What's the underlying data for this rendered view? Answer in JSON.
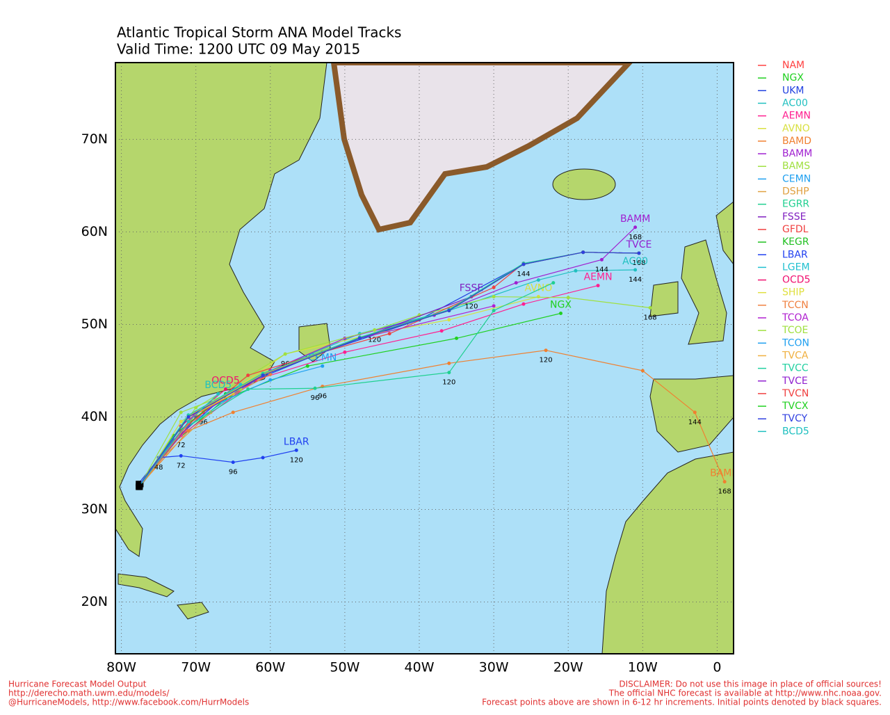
{
  "chart_data": {
    "type": "track-map",
    "title": "Atlantic Tropical Storm ANA Model Tracks",
    "subtitle": "Valid Time: 1200 UTC 09 May 2015",
    "xlim": [
      -80.8,
      2.2
    ],
    "ylim": [
      14.4,
      78.3
    ],
    "xticks": [
      {
        "value": -80,
        "label": "80W"
      },
      {
        "value": -70,
        "label": "70W"
      },
      {
        "value": -60,
        "label": "60W"
      },
      {
        "value": -50,
        "label": "50W"
      },
      {
        "value": -40,
        "label": "40W"
      },
      {
        "value": -30,
        "label": "30W"
      },
      {
        "value": -20,
        "label": "20W"
      },
      {
        "value": -10,
        "label": "10W"
      },
      0
    ],
    "yticks": [
      {
        "value": 20,
        "label": "20N"
      },
      {
        "value": 30,
        "label": "30N"
      },
      {
        "value": 40,
        "label": "40N"
      },
      {
        "value": 50,
        "label": "50N"
      },
      {
        "value": 60,
        "label": "60N"
      },
      {
        "value": 70,
        "label": "70N"
      }
    ],
    "grid": true,
    "series": [
      {
        "name": "NAM",
        "color": "#ff4040",
        "x": [
          -77.5,
          -75,
          -72,
          -69
        ],
        "values": [
          32.6,
          35.5,
          38,
          40.5
        ],
        "hours": [
          null,
          null,
          72,
          96
        ]
      },
      {
        "name": "NGX",
        "color": "#20d020",
        "x": [
          -77.6,
          -74,
          -66,
          -55,
          -35,
          -21
        ],
        "values": [
          32.5,
          36.5,
          42,
          45.5,
          48.5,
          51.2
        ],
        "labeled": true
      },
      {
        "name": "UKM",
        "color": "#2040e0",
        "x": [
          -77.7,
          -73,
          -65,
          -53,
          -40,
          -26,
          -18,
          -10.5
        ],
        "values": [
          32.8,
          37.5,
          43,
          47,
          50.5,
          56.5,
          57.8,
          57.7
        ],
        "hours": [
          null,
          null,
          null,
          null,
          null,
          144,
          null,
          168
        ]
      },
      {
        "name": "AC00",
        "color": "#20c0c0",
        "x": [
          -77.5,
          -72,
          -60,
          -48,
          -36,
          -24,
          -19,
          -11
        ],
        "values": [
          32.4,
          38.5,
          45,
          49,
          51.5,
          54.8,
          55.8,
          55.9
        ],
        "hours": [
          null,
          null,
          null,
          null,
          null,
          null,
          null,
          144
        ],
        "labeled": true
      },
      {
        "name": "AEMN",
        "color": "#ff2090",
        "x": [
          -77.6,
          -72,
          -62,
          -50,
          -37,
          -26,
          -16
        ],
        "values": [
          32.5,
          38,
          44,
          47,
          49.3,
          52.2,
          54.2
        ],
        "labeled": true
      },
      {
        "name": "AVNO",
        "color": "#d8e040",
        "x": [
          -77.4,
          -70,
          -58,
          -46,
          -36,
          -24
        ],
        "values": [
          32.7,
          40,
          46.8,
          49,
          50.5,
          53
        ],
        "labeled": true
      },
      {
        "name": "BAMD",
        "color": "#f08030",
        "x": [
          -77.7,
          -71,
          -65,
          -53,
          -36,
          -23,
          -10,
          -3,
          1
        ],
        "values": [
          32.4,
          38.5,
          40.5,
          43.3,
          45.8,
          47.2,
          45,
          40.5,
          33
        ],
        "hours": [
          null,
          null,
          null,
          96,
          null,
          120,
          null,
          144,
          168
        ],
        "labeled": true
      },
      {
        "name": "BAMM",
        "color": "#a020d0",
        "x": [
          -77.5,
          -70,
          -60,
          -50,
          -38,
          -27,
          -15.5,
          -11
        ],
        "values": [
          32.6,
          40.5,
          45,
          48.5,
          51,
          54.5,
          57,
          60.5
        ],
        "hours": [
          null,
          null,
          null,
          null,
          null,
          null,
          144,
          168
        ],
        "labeled": true
      },
      {
        "name": "BAMS",
        "color": "#a0e040",
        "x": [
          -77.6,
          -70,
          -58,
          -46,
          -40,
          -30,
          -20,
          -9
        ],
        "values": [
          32.6,
          41,
          46.8,
          49.4,
          51,
          53,
          52.9,
          51.8
        ],
        "hours": [
          null,
          null,
          96,
          120,
          null,
          null,
          null,
          168
        ]
      },
      {
        "name": "CEMN",
        "color": "#20a0f0",
        "x": [
          -77.5,
          -71,
          -60,
          -53
        ],
        "values": [
          32.5,
          40,
          44,
          45.5
        ],
        "labeled": true
      },
      {
        "name": "DSHP",
        "color": "#e0a040",
        "x": [
          -77.5,
          -74,
          -68
        ],
        "values": [
          32.5,
          36,
          40.5
        ]
      },
      {
        "name": "EGRR",
        "color": "#20d090",
        "x": [
          -77.7,
          -72,
          -63,
          -54,
          -36,
          -30,
          -22
        ],
        "values": [
          32.5,
          38.5,
          43,
          43.1,
          44.8,
          51.5,
          54.5
        ],
        "hours": [
          null,
          null,
          null,
          96,
          120,
          null,
          null
        ]
      },
      {
        "name": "FSSE",
        "color": "#8020c0",
        "x": [
          -77.6,
          -70,
          -60,
          -48,
          -33
        ],
        "values": [
          32.6,
          40,
          45,
          48.5,
          53
        ],
        "hours": [
          null,
          null,
          null,
          null,
          120
        ],
        "labeled": true
      },
      {
        "name": "GFDL",
        "color": "#f04040",
        "x": [
          -77.5,
          -72,
          -63,
          -53,
          -44,
          -30,
          -26
        ],
        "values": [
          32.5,
          38.5,
          44.5,
          47,
          49,
          54,
          56.6
        ]
      },
      {
        "name": "KEGR",
        "color": "#20c020",
        "x": [
          -77.5,
          -73,
          -66
        ],
        "values": [
          32.6,
          38,
          42.5
        ]
      },
      {
        "name": "LBAR",
        "color": "#2040f0",
        "x": [
          -77.6,
          -75,
          -72,
          -65,
          -61,
          -56.5
        ],
        "values": [
          32.5,
          35.6,
          35.8,
          35.1,
          35.6,
          36.4
        ],
        "hours": [
          null,
          48,
          72,
          96,
          null,
          120
        ],
        "labeled": true
      },
      {
        "name": "LGEM",
        "color": "#20c0d0",
        "x": [
          -77.5,
          -72,
          -64
        ],
        "values": [
          32.5,
          39.5,
          43.5
        ]
      },
      {
        "name": "OCD5",
        "color": "#f01070",
        "x": [
          -77.6,
          -72,
          -66
        ],
        "values": [
          32.6,
          39,
          43
        ],
        "labeled": true
      },
      {
        "name": "SHIP",
        "color": "#e0e040",
        "x": [
          -77.5,
          -72,
          -65
        ],
        "values": [
          32.5,
          39.5,
          42.5
        ]
      },
      {
        "name": "TCCN",
        "color": "#f08040",
        "x": [
          -77.6,
          -70,
          -60
        ],
        "values": [
          32.5,
          40.3,
          44.6
        ]
      },
      {
        "name": "TCOA",
        "color": "#b020d0",
        "x": [
          -77.5,
          -70,
          -60,
          -48,
          -30
        ],
        "values": [
          32.7,
          40.5,
          45,
          48.5,
          52
        ]
      },
      {
        "name": "TCOE",
        "color": "#a0e040",
        "x": [
          -77.5,
          -72,
          -64
        ],
        "values": [
          32.6,
          40.5,
          43
        ]
      },
      {
        "name": "TCON",
        "color": "#20a0f0",
        "x": [
          -77.6,
          -71,
          -61,
          -48,
          -36,
          -26,
          -18,
          -10.5
        ],
        "values": [
          32.6,
          40,
          44.5,
          48.5,
          51.5,
          56.5,
          57.8,
          57.7
        ]
      },
      {
        "name": "TVCA",
        "color": "#f0b040",
        "x": [
          -77.6,
          -71,
          -61,
          -48,
          -36,
          -26,
          -18,
          -10.5
        ],
        "values": [
          32.6,
          40.1,
          44.6,
          48.6,
          51.5,
          56.5,
          57.8,
          57.7
        ]
      },
      {
        "name": "TVCC",
        "color": "#20d0a0",
        "x": [
          -77.6,
          -71,
          -61,
          -48,
          -36,
          -26,
          -18,
          -10.5
        ],
        "values": [
          32.6,
          40.2,
          44.7,
          48.6,
          51.6,
          56.6,
          57.8,
          57.7
        ]
      },
      {
        "name": "TVCE",
        "color": "#9020d0",
        "x": [
          -77.6,
          -71,
          -61,
          -48,
          -36,
          -26,
          -18,
          -10.5
        ],
        "values": [
          32.6,
          40,
          44.5,
          48.5,
          51.5,
          56.5,
          57.8,
          57.7
        ],
        "labeled": true
      },
      {
        "name": "TVCN",
        "color": "#f04040",
        "x": [
          -77.6,
          -71,
          -61,
          -48,
          -36,
          -26,
          -18,
          -10.5
        ],
        "values": [
          32.6,
          40,
          44.5,
          48.5,
          51.5,
          56.5,
          57.8,
          57.7
        ]
      },
      {
        "name": "TVCX",
        "color": "#20d020",
        "x": [
          -77.6,
          -71,
          -61,
          -48,
          -36,
          -26,
          -18,
          -10.5
        ],
        "values": [
          32.6,
          40,
          44.5,
          48.5,
          51.5,
          56.5,
          57.8,
          57.7
        ]
      },
      {
        "name": "TVCY",
        "color": "#3040e0",
        "x": [
          -77.6,
          -71,
          -61,
          -48,
          -36,
          -26,
          -18,
          -10.5
        ],
        "values": [
          32.6,
          40,
          44.5,
          48.5,
          51.5,
          56.5,
          57.8,
          57.7
        ]
      },
      {
        "name": "BCD5",
        "color": "#20c0c0",
        "x": [
          -77.6,
          -71,
          -67
        ],
        "values": [
          32.5,
          39.5,
          42.5
        ],
        "labeled": true
      }
    ]
  },
  "footer_left": [
    "Hurricane Forecast Model Output",
    "http://derecho.math.uwm.edu/models/",
    "@HurricaneModels, http://www.facebook.com/HurrModels"
  ],
  "footer_right": [
    "DISCLAIMER: Do not use this image in place of official sources!",
    "The official NHC forecast is available at http://www.nhc.noaa.gov.",
    "Forecast points above are shown in 6-12 hr increments. Initial points denoted by black squares."
  ]
}
